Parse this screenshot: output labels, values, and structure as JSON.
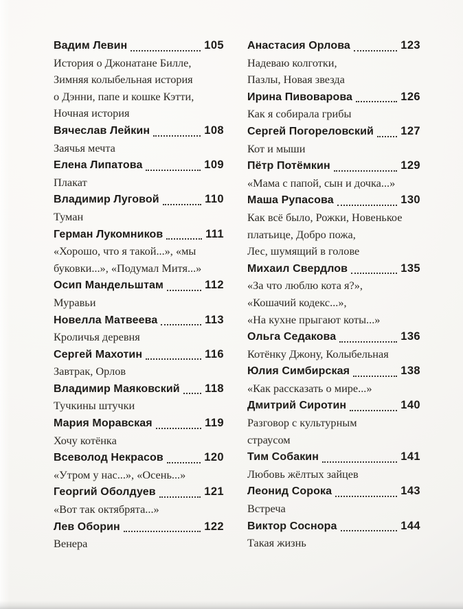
{
  "page_style": {
    "paper_color": "#f8f7f4",
    "author_ink_color": "#1d1b18",
    "works_ink_color": "#2c2923"
  },
  "toc": {
    "columns": [
      {
        "side": "left",
        "entries": [
          {
            "author": "Вадим Левин",
            "page": "105",
            "works": [
              "История о Джонатане Билле,",
              "Зимняя колыбельная история",
              "о Дэнни, папе и кошке Кэтти,",
              "Ночная история"
            ]
          },
          {
            "author": "Вячеслав Лейкин",
            "page": "108",
            "works": [
              "Заячья мечта"
            ]
          },
          {
            "author": "Елена Липатова",
            "page": "109",
            "works": [
              "Плакат"
            ]
          },
          {
            "author": "Владимир Луговой",
            "page": "110",
            "works": [
              "Туман"
            ]
          },
          {
            "author": "Герман Лукомников",
            "page": "111",
            "works": [
              "«Хорошо, что я такой...», «мы",
              "буковки...», «Подумал Митя...»"
            ]
          },
          {
            "author": "Осип Мандельштам",
            "page": "112",
            "works": [
              "Муравьи"
            ]
          },
          {
            "author": "Новелла Матвеева",
            "page": "113",
            "works": [
              "Кроличья деревня"
            ]
          },
          {
            "author": "Сергей Махотин",
            "page": "116",
            "works": [
              "Завтрак, Орлов"
            ]
          },
          {
            "author": "Владимир Маяковский",
            "page": "118",
            "works": [
              "Тучкины штучки"
            ]
          },
          {
            "author": "Мария Моравская",
            "page": "119",
            "works": [
              "Хочу котёнка"
            ]
          },
          {
            "author": "Всеволод Некрасов",
            "page": "120",
            "works": [
              "«Утром у нас...», «Осень...»"
            ]
          },
          {
            "author": "Георгий Оболдуев",
            "page": "121",
            "works": [
              "«Вот так октябрята...»"
            ]
          },
          {
            "author": "Лев Оборин",
            "page": "122",
            "works": [
              "Венера"
            ]
          }
        ]
      },
      {
        "side": "right",
        "entries": [
          {
            "author": "Анастасия Орлова",
            "page": "123",
            "works": [
              "Надеваю колготки,",
              "Пазлы, Новая звезда"
            ]
          },
          {
            "author": "Ирина Пивоварова",
            "page": "126",
            "works": [
              "Как я собирала грибы"
            ]
          },
          {
            "author": "Сергей Погореловский",
            "page": "127",
            "works": [
              "Кот и мыши"
            ]
          },
          {
            "author": "Пётр Потёмкин",
            "page": "129",
            "works": [
              "«Мама с папой, сын и дочка...»"
            ]
          },
          {
            "author": "Маша Рупасова",
            "page": "130",
            "works": [
              "Как всё было, Рожки, Новенькое",
              "платьице, Добро пожа,",
              "Лес, шумящий в голове"
            ]
          },
          {
            "author": "Михаил Свердлов",
            "page": "135",
            "works": [
              "«За что люблю кота я?»,",
              "«Кошачий кодекс...»,",
              "«На кухне прыгают коты...»"
            ]
          },
          {
            "author": "Ольга Седакова",
            "page": "136",
            "works": [
              "Котёнку Джону, Колыбельная"
            ]
          },
          {
            "author": "Юлия Симбирская",
            "page": "138",
            "works": [
              "«Как рассказать о мире...»"
            ]
          },
          {
            "author": "Дмитрий Сиротин",
            "page": "140",
            "works": [
              "Разговор с культурным",
              "страусом"
            ]
          },
          {
            "author": "Тим Собакин",
            "page": "141",
            "works": [
              "Любовь жёлтых зайцев"
            ]
          },
          {
            "author": "Леонид Сорока",
            "page": "143",
            "works": [
              "Встреча"
            ]
          },
          {
            "author": "Виктор Соснора",
            "page": "144",
            "works": [
              "Такая жизнь"
            ]
          }
        ]
      }
    ]
  }
}
